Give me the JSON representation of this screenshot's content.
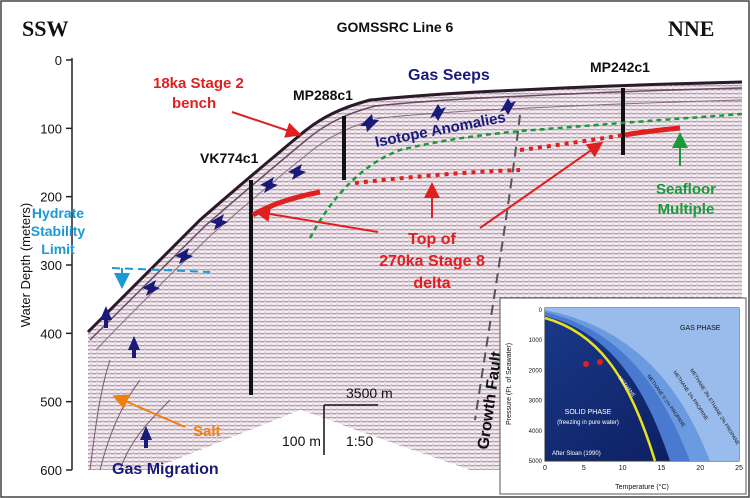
{
  "title": "GOMSSRC Line 6",
  "direction_left": "SSW",
  "direction_right": "NNE",
  "y_axis": {
    "label": "Water Depth (meters)",
    "ticks": [
      "0",
      "100",
      "200",
      "300",
      "400",
      "500",
      "600"
    ]
  },
  "wells": [
    "VK774c1",
    "MP288c1",
    "MP242c1"
  ],
  "annotations": {
    "stage2_line1": "18ka Stage 2",
    "stage2_line2": "bench",
    "gas_seeps": "Gas Seeps",
    "isotope": "Isotope Anomalies",
    "hydrate_line1": "Hydrate",
    "hydrate_line2": "Stability",
    "hydrate_line3": "Limit",
    "seafloor_line1": "Seafloor",
    "seafloor_line2": "Multiple",
    "top_line1": "Top of",
    "top_line2": "270ka Stage 8",
    "top_line3": "delta",
    "salt": "Salt",
    "gas_migration": "Gas Migration",
    "growth_fault": "Growth Fault"
  },
  "scale": {
    "horizontal": "3500 m",
    "vertical": "100 m",
    "ratio": "1:50"
  },
  "inset": {
    "gas_phase": "GAS PHASE",
    "solid_phase_line1": "SOLID PHASE",
    "solid_phase_line2": "(freezing in pure water)",
    "curve_labels": [
      "METHANE 3% ETHANE 2% PROPANE",
      "METHANE 1% PROPANE",
      "METHANE 0.1% PROPANE",
      "METHANE"
    ],
    "citation": "After Sloan (1990)",
    "x_label": "Temperature (°C)",
    "y_label": "Pressure (Ft. of Seawater)",
    "x_ticks": [
      "0",
      "5",
      "10",
      "15",
      "20",
      "25"
    ],
    "y_ticks": [
      "0",
      "1000",
      "2000",
      "3000",
      "4000",
      "5000"
    ]
  },
  "colors": {
    "red": "#e02020",
    "navy": "#1a1a7a",
    "green": "#1a9a3a",
    "cyan": "#1a9ad6",
    "orange": "#f07f10"
  }
}
